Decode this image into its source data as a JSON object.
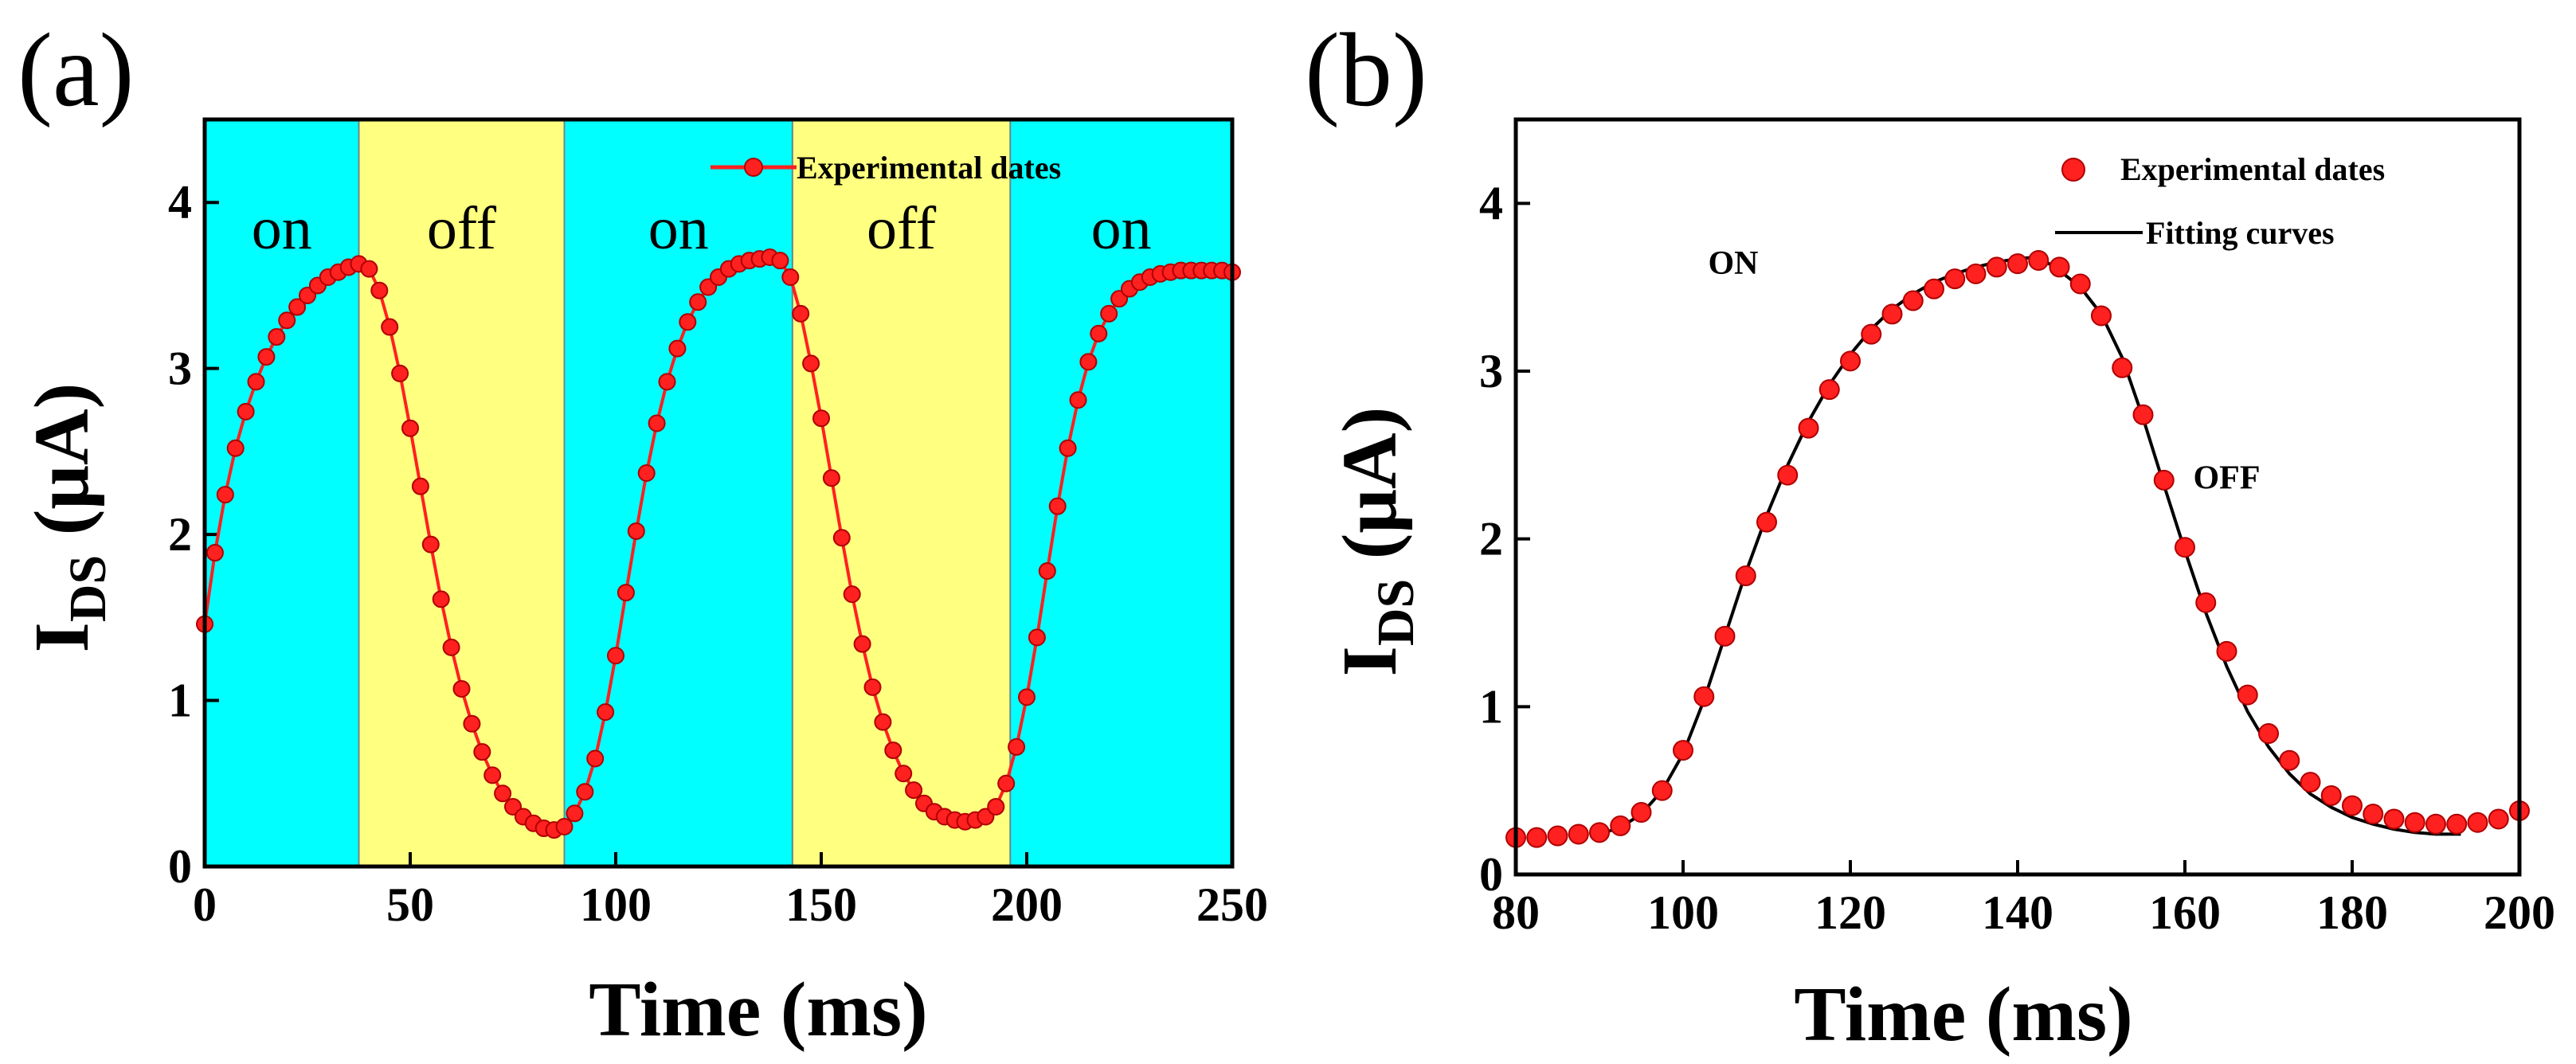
{
  "colors": {
    "on_region": "#00ffff",
    "off_region": "#ffff80",
    "marker": "#ff2020",
    "line": "#ff2020",
    "fit": "#000000",
    "axis": "#000000"
  },
  "chart_data": [
    {
      "panel": "(a)",
      "type": "line",
      "xlabel": "Time (ms)",
      "ylabel": {
        "main": "I",
        "sub": "DS",
        "tail": " (μA)"
      },
      "xlim": [
        0,
        250
      ],
      "ylim": [
        0,
        4.5
      ],
      "xticks": [
        0,
        50,
        100,
        150,
        200,
        250
      ],
      "yticks": [
        0,
        1,
        2,
        3,
        4
      ],
      "regions": [
        {
          "label": "on",
          "state": "on",
          "x0": 0,
          "x1": 37.5
        },
        {
          "label": "off",
          "state": "off",
          "x0": 37.5,
          "x1": 87.5
        },
        {
          "label": "on",
          "state": "on",
          "x0": 87.5,
          "x1": 143
        },
        {
          "label": "off",
          "state": "off",
          "x0": 143,
          "x1": 196
        },
        {
          "label": "on",
          "state": "on",
          "x0": 196,
          "x1": 250
        }
      ],
      "legend": {
        "label": "Experimental dates",
        "position": "top-right"
      },
      "series": [
        {
          "name": "Experimental dates",
          "x": [
            0,
            2.5,
            5,
            7.5,
            10,
            12.5,
            15,
            17.5,
            20,
            22.5,
            25,
            27.5,
            30,
            32.5,
            35,
            37.5,
            40,
            42.5,
            45,
            47.5,
            50,
            52.5,
            55,
            57.5,
            60,
            62.5,
            65,
            67.5,
            70,
            72.5,
            75,
            77.5,
            80,
            82.5,
            85,
            87.5,
            90,
            92.5,
            95,
            97.5,
            100,
            102.5,
            105,
            107.5,
            110,
            112.5,
            115,
            117.5,
            120,
            122.5,
            125,
            127.5,
            130,
            132.5,
            135,
            137.5,
            140,
            142.5,
            145,
            147.5,
            150,
            152.5,
            155,
            157.5,
            160,
            162.5,
            165,
            167.5,
            170,
            172.5,
            175,
            177.5,
            180,
            182.5,
            185,
            187.5,
            190,
            192.5,
            195,
            197.5,
            200,
            202.5,
            205,
            207.5,
            210,
            212.5,
            215,
            217.5,
            220,
            222.5,
            225,
            227.5,
            230,
            232.5,
            235,
            237.5,
            240,
            242.5,
            245,
            247.5,
            250
          ],
          "y": [
            1.46,
            1.89,
            2.24,
            2.52,
            2.74,
            2.92,
            3.07,
            3.19,
            3.29,
            3.37,
            3.44,
            3.5,
            3.55,
            3.58,
            3.61,
            3.63,
            3.6,
            3.47,
            3.25,
            2.97,
            2.64,
            2.29,
            1.94,
            1.61,
            1.32,
            1.07,
            0.86,
            0.69,
            0.55,
            0.44,
            0.36,
            0.3,
            0.26,
            0.23,
            0.22,
            0.24,
            0.32,
            0.45,
            0.65,
            0.93,
            1.27,
            1.65,
            2.02,
            2.37,
            2.67,
            2.92,
            3.12,
            3.28,
            3.4,
            3.49,
            3.55,
            3.6,
            3.63,
            3.65,
            3.66,
            3.67,
            3.65,
            3.55,
            3.33,
            3.03,
            2.7,
            2.34,
            1.98,
            1.64,
            1.34,
            1.08,
            0.87,
            0.7,
            0.56,
            0.46,
            0.38,
            0.33,
            0.3,
            0.28,
            0.27,
            0.28,
            0.3,
            0.36,
            0.5,
            0.72,
            1.02,
            1.38,
            1.78,
            2.17,
            2.52,
            2.81,
            3.04,
            3.21,
            3.33,
            3.42,
            3.48,
            3.52,
            3.55,
            3.57,
            3.58,
            3.59,
            3.59,
            3.59,
            3.59,
            3.59,
            3.58
          ]
        }
      ]
    },
    {
      "panel": "(b)",
      "type": "scatter",
      "xlabel": "Time (ms)",
      "ylabel": {
        "main": "I",
        "sub": "DS",
        "tail": " (μA)"
      },
      "xlim": [
        80,
        200
      ],
      "ylim": [
        0,
        4.5
      ],
      "xticks": [
        80,
        100,
        120,
        140,
        160,
        180,
        200
      ],
      "yticks": [
        0,
        1,
        2,
        3,
        4
      ],
      "annotations": [
        {
          "text": "ON",
          "x": 106,
          "y": 3.58
        },
        {
          "text": "OFF",
          "x": 165,
          "y": 2.3
        }
      ],
      "legend": {
        "items": [
          "Experimental dates",
          "Fitting curves"
        ],
        "position": "top-right"
      },
      "series": [
        {
          "name": "Experimental dates",
          "style": "markers",
          "x": [
            80,
            82.5,
            85,
            87.5,
            90,
            92.5,
            95,
            97.5,
            100,
            102.5,
            105,
            107.5,
            110,
            112.5,
            115,
            117.5,
            120,
            122.5,
            125,
            127.5,
            130,
            132.5,
            135,
            137.5,
            140,
            142.5,
            145,
            147.5,
            150,
            152.5,
            155,
            157.5,
            160,
            162.5,
            165,
            167.5,
            170,
            172.5,
            175,
            177.5,
            180,
            182.5,
            185,
            187.5,
            190,
            192.5,
            195,
            197.5,
            200
          ],
          "y": [
            0.22,
            0.22,
            0.23,
            0.24,
            0.25,
            0.29,
            0.37,
            0.5,
            0.74,
            1.06,
            1.42,
            1.78,
            2.1,
            2.38,
            2.66,
            2.89,
            3.06,
            3.22,
            3.34,
            3.42,
            3.49,
            3.55,
            3.58,
            3.62,
            3.64,
            3.66,
            3.62,
            3.52,
            3.33,
            3.02,
            2.74,
            2.35,
            1.95,
            1.62,
            1.33,
            1.07,
            0.84,
            0.68,
            0.55,
            0.47,
            0.41,
            0.36,
            0.33,
            0.31,
            0.3,
            0.3,
            0.31,
            0.33,
            0.38
          ]
        },
        {
          "name": "Fitting curves",
          "style": "line",
          "x": [
            90,
            92.5,
            95,
            97.5,
            100,
            102.5,
            105,
            107.5,
            110,
            112.5,
            115,
            117.5,
            120,
            122.5,
            125,
            127.5,
            130,
            132.5,
            135,
            137.5,
            140,
            142.5,
            145,
            147.5,
            150,
            152.5,
            155,
            157.5,
            160,
            162.5,
            165,
            167.5,
            170,
            172.5,
            175,
            177.5,
            180,
            182.5,
            185,
            187.5,
            190,
            193
          ],
          "y": [
            0.24,
            0.28,
            0.36,
            0.5,
            0.72,
            1.04,
            1.42,
            1.8,
            2.14,
            2.44,
            2.7,
            2.92,
            3.1,
            3.25,
            3.37,
            3.46,
            3.53,
            3.58,
            3.62,
            3.65,
            3.67,
            3.68,
            3.6,
            3.5,
            3.34,
            3.08,
            2.72,
            2.32,
            1.93,
            1.56,
            1.24,
            0.97,
            0.76,
            0.6,
            0.48,
            0.4,
            0.34,
            0.3,
            0.27,
            0.25,
            0.24,
            0.24
          ]
        }
      ]
    }
  ]
}
